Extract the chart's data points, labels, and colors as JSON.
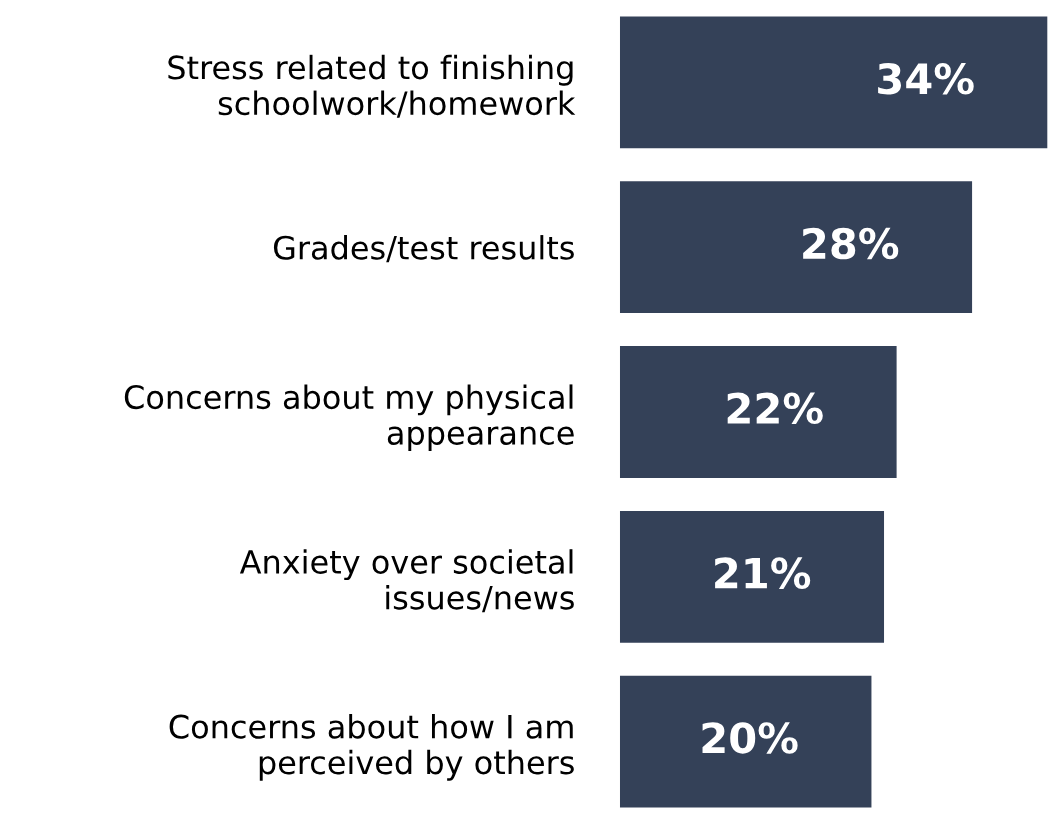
{
  "chart_data": {
    "type": "bar",
    "orientation": "horizontal",
    "categories": [
      "Stress related to finishing\nschoolwork/homework",
      "Grades/test results",
      "Concerns about my physical\nappearance",
      "Anxiety over societal\nissues/news",
      "Concerns about how I am\nperceived by others"
    ],
    "values": [
      34,
      28,
      22,
      21,
      20
    ],
    "value_labels": [
      "34%",
      "28%",
      "22%",
      "21%",
      "20%"
    ],
    "color": "#344158",
    "grid": false,
    "legend": false
  }
}
